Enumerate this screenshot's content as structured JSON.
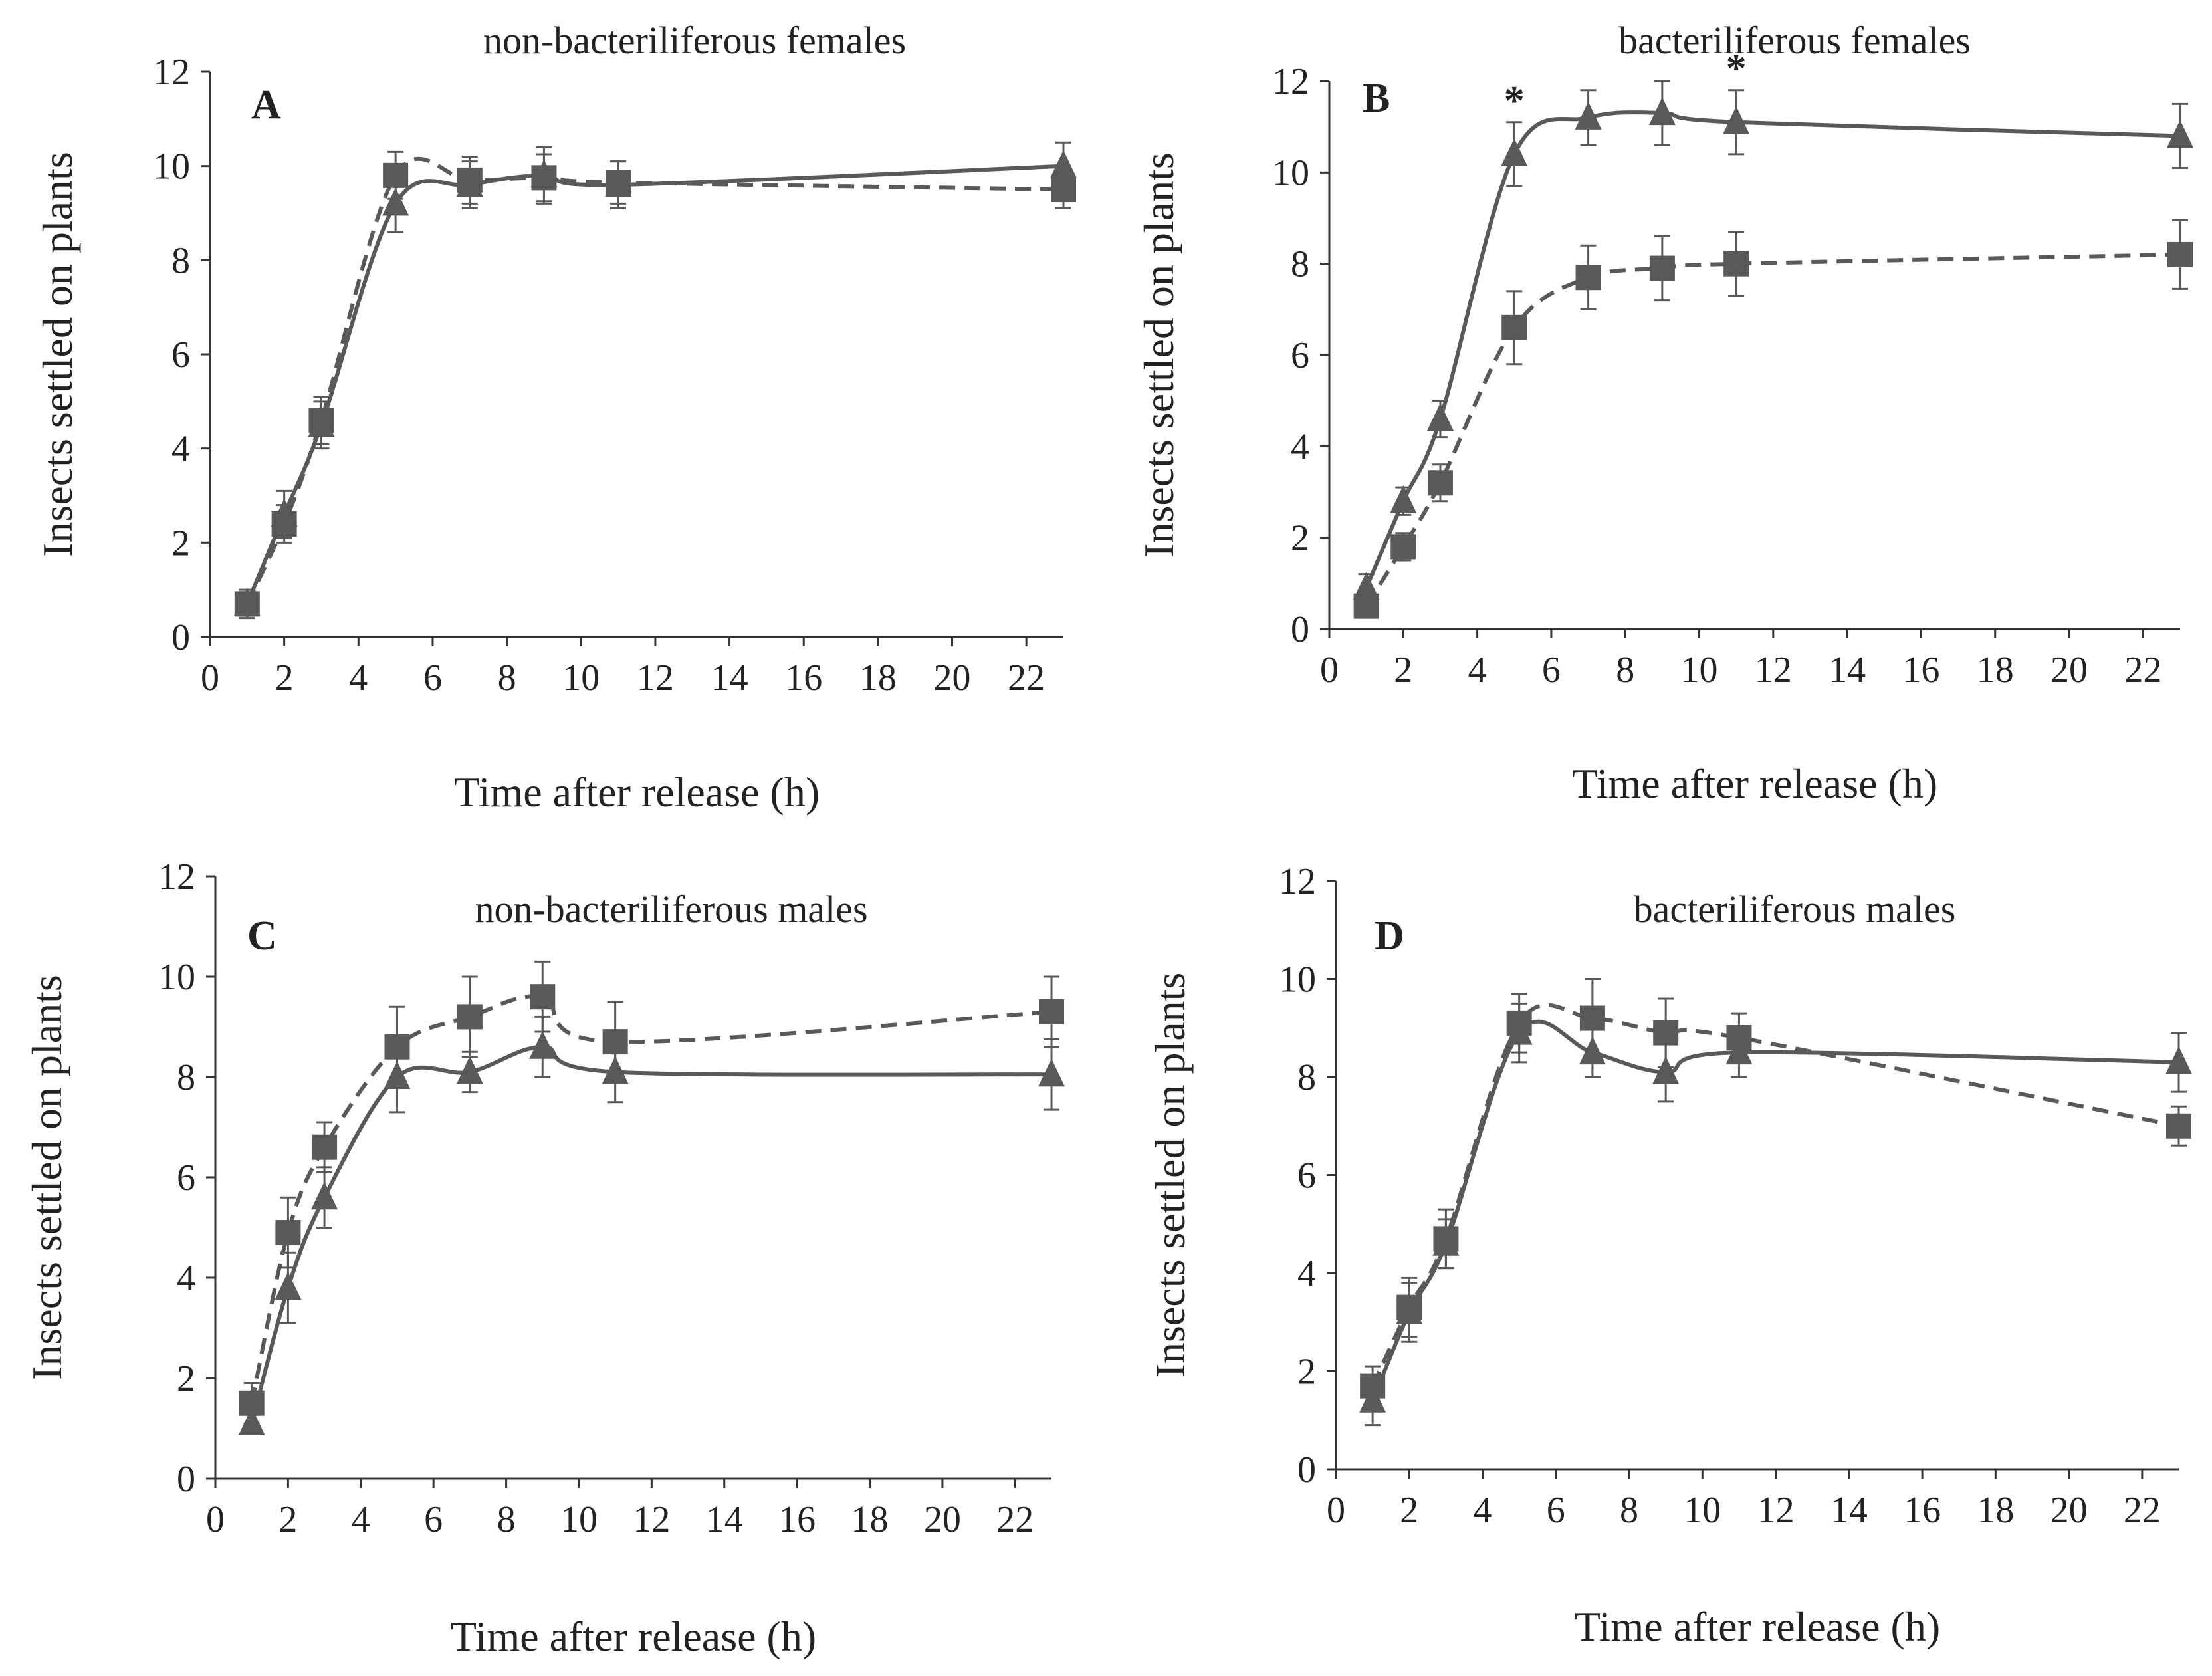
{
  "figure": {
    "colors": {
      "series": "#595959",
      "axis": "#333333",
      "text": "#222222"
    }
  },
  "chart_data": [
    {
      "panel": "A",
      "type": "line",
      "title": "non-bacteriliferous females",
      "xlabel": "Time after release (h)",
      "ylabel": "Insects settled on plants",
      "xlim": [
        0,
        23
      ],
      "ylim": [
        0,
        12
      ],
      "xticks": [
        "0",
        "2",
        "4",
        "6",
        "8",
        "10",
        "12",
        "14",
        "16",
        "18",
        "20",
        "22"
      ],
      "yticks": [
        "0",
        "2",
        "4",
        "6",
        "8",
        "10",
        "12"
      ],
      "x": [
        1,
        2,
        3,
        5,
        7,
        9,
        11,
        23
      ],
      "series": [
        {
          "name": "triangle-solid",
          "marker": "triangle",
          "dash": "solid",
          "values": [
            0.7,
            2.6,
            4.5,
            9.2,
            9.6,
            9.8,
            9.6,
            10.0
          ],
          "errors": [
            0.3,
            0.5,
            0.5,
            0.6,
            0.5,
            0.6,
            0.5,
            0.5
          ]
        },
        {
          "name": "square-dashed",
          "marker": "square",
          "dash": "dashed",
          "values": [
            0.7,
            2.4,
            4.6,
            9.8,
            9.7,
            9.75,
            9.65,
            9.5
          ],
          "errors": [
            0.25,
            0.4,
            0.5,
            0.5,
            0.5,
            0.5,
            0.45,
            0.4
          ]
        }
      ],
      "annotations": []
    },
    {
      "panel": "B",
      "type": "line",
      "title": "bacteriliferous females",
      "xlabel": "Time after release (h)",
      "ylabel": "Insects settled on plants",
      "xlim": [
        0,
        23
      ],
      "ylim": [
        0,
        12
      ],
      "xticks": [
        "0",
        "2",
        "4",
        "6",
        "8",
        "10",
        "12",
        "14",
        "16",
        "18",
        "20",
        "22"
      ],
      "yticks": [
        "0",
        "2",
        "4",
        "6",
        "8",
        "10",
        "12"
      ],
      "x": [
        1,
        2,
        3,
        5,
        7,
        9,
        11,
        23
      ],
      "series": [
        {
          "name": "triangle-solid",
          "marker": "triangle",
          "dash": "solid",
          "values": [
            0.9,
            2.8,
            4.6,
            10.4,
            11.2,
            11.3,
            11.1,
            10.8
          ],
          "errors": [
            0.3,
            0.3,
            0.4,
            0.7,
            0.6,
            0.7,
            0.7,
            0.7
          ]
        },
        {
          "name": "square-dashed",
          "marker": "square",
          "dash": "dashed",
          "values": [
            0.5,
            1.8,
            3.2,
            6.6,
            7.7,
            7.9,
            8.0,
            8.2
          ],
          "errors": [
            0.2,
            0.3,
            0.4,
            0.8,
            0.7,
            0.7,
            0.7,
            0.75
          ]
        }
      ],
      "annotations": [
        {
          "x": 5,
          "text": "*"
        },
        {
          "x": 11,
          "text": "*"
        }
      ]
    },
    {
      "panel": "C",
      "type": "line",
      "title": "non-bacteriliferous males",
      "xlabel": "Time after release (h)",
      "ylabel": "Insects settled on plants",
      "xlim": [
        0,
        23
      ],
      "ylim": [
        0,
        12
      ],
      "xticks": [
        "0",
        "2",
        "4",
        "6",
        "8",
        "10",
        "12",
        "14",
        "16",
        "18",
        "20",
        "22"
      ],
      "yticks": [
        "0",
        "2",
        "4",
        "6",
        "8",
        "10",
        "12"
      ],
      "x": [
        1,
        2,
        3,
        5,
        7,
        9,
        11,
        23
      ],
      "series": [
        {
          "name": "triangle-solid",
          "marker": "triangle",
          "dash": "solid",
          "values": [
            1.1,
            3.8,
            5.6,
            8.0,
            8.1,
            8.6,
            8.1,
            8.05
          ],
          "errors": [
            0.2,
            0.7,
            0.6,
            0.7,
            0.4,
            0.6,
            0.6,
            0.7
          ]
        },
        {
          "name": "square-dashed",
          "marker": "square",
          "dash": "dashed",
          "values": [
            1.5,
            4.9,
            6.6,
            8.6,
            9.2,
            9.6,
            8.7,
            9.3
          ],
          "errors": [
            0.4,
            0.7,
            0.5,
            0.8,
            0.8,
            0.7,
            0.8,
            0.7
          ]
        }
      ],
      "annotations": []
    },
    {
      "panel": "D",
      "type": "line",
      "title": "bacteriliferous males",
      "xlabel": "Time after release (h)",
      "ylabel": "Insects settled on plants",
      "xlim": [
        0,
        23
      ],
      "ylim": [
        0,
        12
      ],
      "xticks": [
        "0",
        "2",
        "4",
        "6",
        "8",
        "10",
        "12",
        "14",
        "16",
        "18",
        "20",
        "22"
      ],
      "yticks": [
        "0",
        "2",
        "4",
        "6",
        "8",
        "10",
        "12"
      ],
      "x": [
        1,
        2,
        3,
        5,
        7,
        9,
        11,
        23
      ],
      "series": [
        {
          "name": "triangle-solid",
          "marker": "triangle",
          "dash": "solid",
          "values": [
            1.4,
            3.2,
            4.6,
            8.9,
            8.5,
            8.1,
            8.5,
            8.3
          ],
          "errors": [
            0.5,
            0.6,
            0.5,
            0.6,
            0.5,
            0.6,
            0.5,
            0.6
          ]
        },
        {
          "name": "square-dashed",
          "marker": "square",
          "dash": "dashed",
          "values": [
            1.7,
            3.3,
            4.7,
            9.1,
            9.2,
            8.9,
            8.8,
            7.0
          ],
          "errors": [
            0.4,
            0.6,
            0.6,
            0.6,
            0.8,
            0.7,
            0.5,
            0.4
          ]
        }
      ],
      "annotations": []
    }
  ]
}
